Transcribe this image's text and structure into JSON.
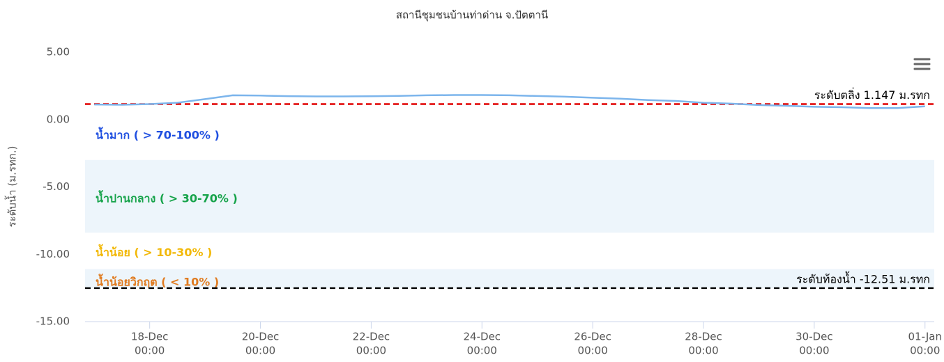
{
  "chart_data": {
    "type": "line",
    "title": "สถานีชุมชนบ้านท่าด่าน จ.ปัตตานี",
    "y_label": "ระดับน้ำ (ม.รทก.)",
    "x": [
      "17-Dec 00:00",
      "17-Dec 12:00",
      "18-Dec 00:00",
      "18-Dec 12:00",
      "19-Dec 00:00",
      "19-Dec 12:00",
      "20-Dec 00:00",
      "20-Dec 12:00",
      "21-Dec 00:00",
      "21-Dec 12:00",
      "22-Dec 00:00",
      "22-Dec 12:00",
      "23-Dec 00:00",
      "23-Dec 12:00",
      "24-Dec 00:00",
      "24-Dec 12:00",
      "25-Dec 00:00",
      "25-Dec 12:00",
      "26-Dec 00:00",
      "26-Dec 12:00",
      "27-Dec 00:00",
      "27-Dec 12:00",
      "28-Dec 00:00",
      "28-Dec 12:00",
      "29-Dec 00:00",
      "29-Dec 12:00",
      "30-Dec 00:00",
      "30-Dec 12:00",
      "31-Dec 00:00",
      "31-Dec 12:00",
      "01-Jan 00:00"
    ],
    "series": [
      {
        "color": "#7cb5ec",
        "values": [
          1.12,
          1.1,
          1.15,
          1.25,
          1.52,
          1.8,
          1.78,
          1.74,
          1.72,
          1.72,
          1.73,
          1.76,
          1.8,
          1.82,
          1.82,
          1.8,
          1.75,
          1.7,
          1.62,
          1.55,
          1.45,
          1.38,
          1.25,
          1.18,
          1.08,
          1.02,
          0.95,
          0.92,
          0.85,
          0.85,
          0.98
        ]
      }
    ],
    "xlim": [
      "16-Dec 20:00",
      "01-Jan 04:00"
    ],
    "xticks": [
      {
        "value": "18-Dec 00:00",
        "label": [
          "18-Dec",
          "00:00"
        ]
      },
      {
        "value": "20-Dec 00:00",
        "label": [
          "20-Dec",
          "00:00"
        ]
      },
      {
        "value": "22-Dec 00:00",
        "label": [
          "22-Dec",
          "00:00"
        ]
      },
      {
        "value": "24-Dec 00:00",
        "label": [
          "24-Dec",
          "00:00"
        ]
      },
      {
        "value": "26-Dec 00:00",
        "label": [
          "26-Dec",
          "00:00"
        ]
      },
      {
        "value": "28-Dec 00:00",
        "label": [
          "28-Dec",
          "00:00"
        ]
      },
      {
        "value": "30-Dec 00:00",
        "label": [
          "30-Dec",
          "00:00"
        ]
      },
      {
        "value": "01-Jan 00:00",
        "label": [
          "01-Jan",
          "00:00"
        ]
      }
    ],
    "ylim": [
      -15,
      5
    ],
    "yticks": [
      {
        "value": 5,
        "label": "5.00"
      },
      {
        "value": 0,
        "label": "0.00"
      },
      {
        "value": -5,
        "label": "-5.00"
      },
      {
        "value": -10,
        "label": "-10.00"
      },
      {
        "value": -15,
        "label": "-15.00"
      }
    ],
    "bands": [
      {
        "from": -3,
        "to": -8.4,
        "color": "#edf5fb"
      },
      {
        "from": -11.1,
        "to": -12.51,
        "color": "#edf5fb"
      }
    ],
    "plot_lines": [
      {
        "value": 1.147,
        "label": "ระดับตลิ่ง 1.147 ม.รทก",
        "color": "#e00000"
      },
      {
        "value": -12.51,
        "label": "ระดับท้องน้ำ -12.51 ม.รทก",
        "color": "#000000"
      }
    ],
    "zone_labels": [
      {
        "text": "น้ำมาก ( > 70-100% )",
        "color": "#1f4fe0",
        "y": -1.2
      },
      {
        "text": "น้ำปานกลาง ( > 30-70% )",
        "color": "#16a34a",
        "y": -5.9
      },
      {
        "text": "น้ำน้อย ( > 10-30% )",
        "color": "#f2b807",
        "y": -9.9
      },
      {
        "text": "น้ำน้อยวิกฤต ( < 10% )",
        "color": "#e07b20",
        "y": -12.1
      }
    ]
  }
}
